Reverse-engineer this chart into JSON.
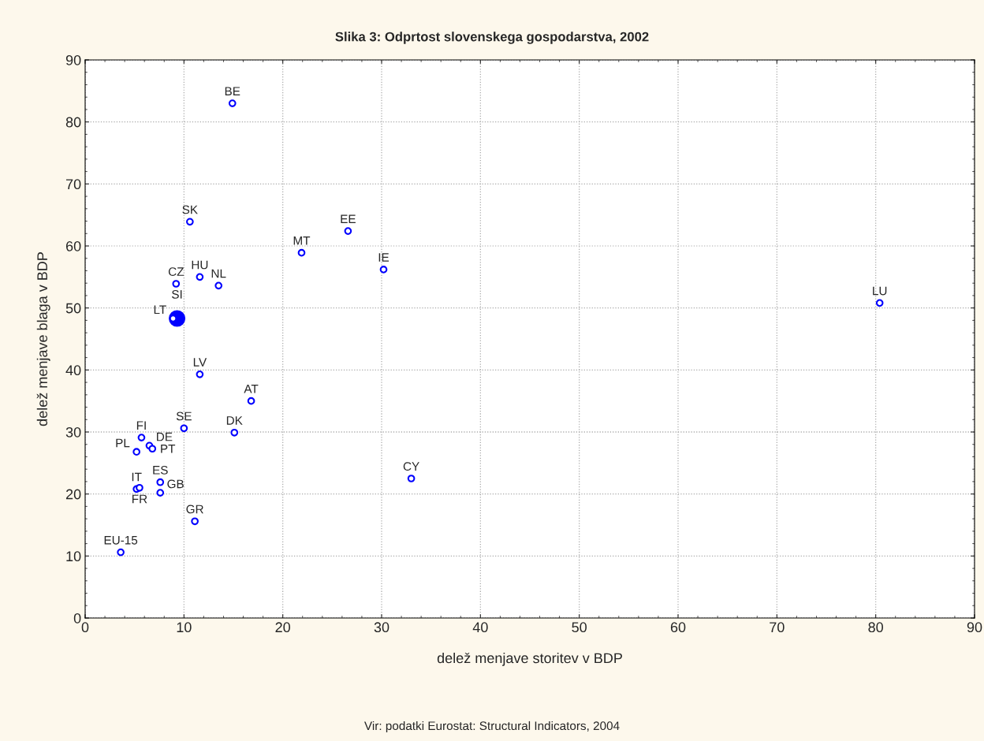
{
  "chart_data": {
    "type": "scatter",
    "title": "Slika 3: Odprtost slovenskega gospodarstva, 2002",
    "xlabel": "delež menjave storitev v BDP",
    "ylabel": "delež menjave blaga v BDP",
    "xlim": [
      0,
      90
    ],
    "xticks": [
      0,
      10,
      20,
      30,
      40,
      50,
      60,
      70,
      80,
      90
    ],
    "ylim": [
      0,
      90
    ],
    "yticks": [
      0,
      10,
      20,
      30,
      40,
      50,
      60,
      70,
      80,
      90
    ],
    "grid": true,
    "marker": "circle",
    "series": [
      {
        "color": "#0000ff",
        "x": [
          14.9,
          10.6,
          26.6,
          21.9,
          30.2,
          11.6,
          9.2,
          13.5,
          80.4,
          8.9,
          11.6,
          16.8,
          10.0,
          15.1,
          5.7,
          6.5,
          6.8,
          5.2,
          33.0,
          7.6,
          5.2,
          5.5,
          7.6,
          11.1,
          3.6
        ],
        "values": [
          83.0,
          63.9,
          62.4,
          58.9,
          56.2,
          55.0,
          53.9,
          53.6,
          50.8,
          48.3,
          39.3,
          35.0,
          30.6,
          29.9,
          29.1,
          27.8,
          27.3,
          26.8,
          22.5,
          21.9,
          20.8,
          21.0,
          20.2,
          15.6,
          10.6
        ]
      },
      {
        "color": "#0000ff",
        "x": [
          9.3
        ],
        "values": [
          48.3
        ],
        "sizes": [
          1
        ]
      }
    ],
    "annotations": [
      {
        "text": "BE",
        "x": 14.9,
        "y": 83.0
      },
      {
        "text": "SK",
        "x": 10.6,
        "y": 63.9
      },
      {
        "text": "EE",
        "x": 26.6,
        "y": 62.4
      },
      {
        "text": "MT",
        "x": 21.9,
        "y": 58.9
      },
      {
        "text": "IE",
        "x": 30.2,
        "y": 56.2
      },
      {
        "text": "HU",
        "x": 11.6,
        "y": 55.0
      },
      {
        "text": "CZ",
        "x": 9.2,
        "y": 53.9
      },
      {
        "text": "NL",
        "x": 13.5,
        "y": 53.6
      },
      {
        "text": "LU",
        "x": 80.4,
        "y": 50.8
      },
      {
        "text": "LT",
        "x": 8.9,
        "y": 48.3
      },
      {
        "text": "SI",
        "x": 9.3,
        "y": 48.3
      },
      {
        "text": "LV",
        "x": 11.6,
        "y": 39.3
      },
      {
        "text": "AT",
        "x": 16.8,
        "y": 35.0
      },
      {
        "text": "SE",
        "x": 10.0,
        "y": 30.6
      },
      {
        "text": "DK",
        "x": 15.1,
        "y": 29.9
      },
      {
        "text": "FI",
        "x": 5.7,
        "y": 29.1
      },
      {
        "text": "DE",
        "x": 6.5,
        "y": 27.8
      },
      {
        "text": "PT",
        "x": 6.8,
        "y": 27.3
      },
      {
        "text": "PL",
        "x": 5.2,
        "y": 26.8
      },
      {
        "text": "CY",
        "x": 33.0,
        "y": 22.5
      },
      {
        "text": "ES",
        "x": 7.6,
        "y": 21.9
      },
      {
        "text": "IT",
        "x": 5.2,
        "y": 20.8
      },
      {
        "text": "FR",
        "x": 5.5,
        "y": 21.0
      },
      {
        "text": "GB",
        "x": 7.6,
        "y": 20.2
      },
      {
        "text": "GR",
        "x": 11.1,
        "y": 15.6
      },
      {
        "text": "EU-15",
        "x": 3.6,
        "y": 10.6
      },
      "Vir: podatki Eurostat: Structural Indicators, 2004"
    ]
  }
}
